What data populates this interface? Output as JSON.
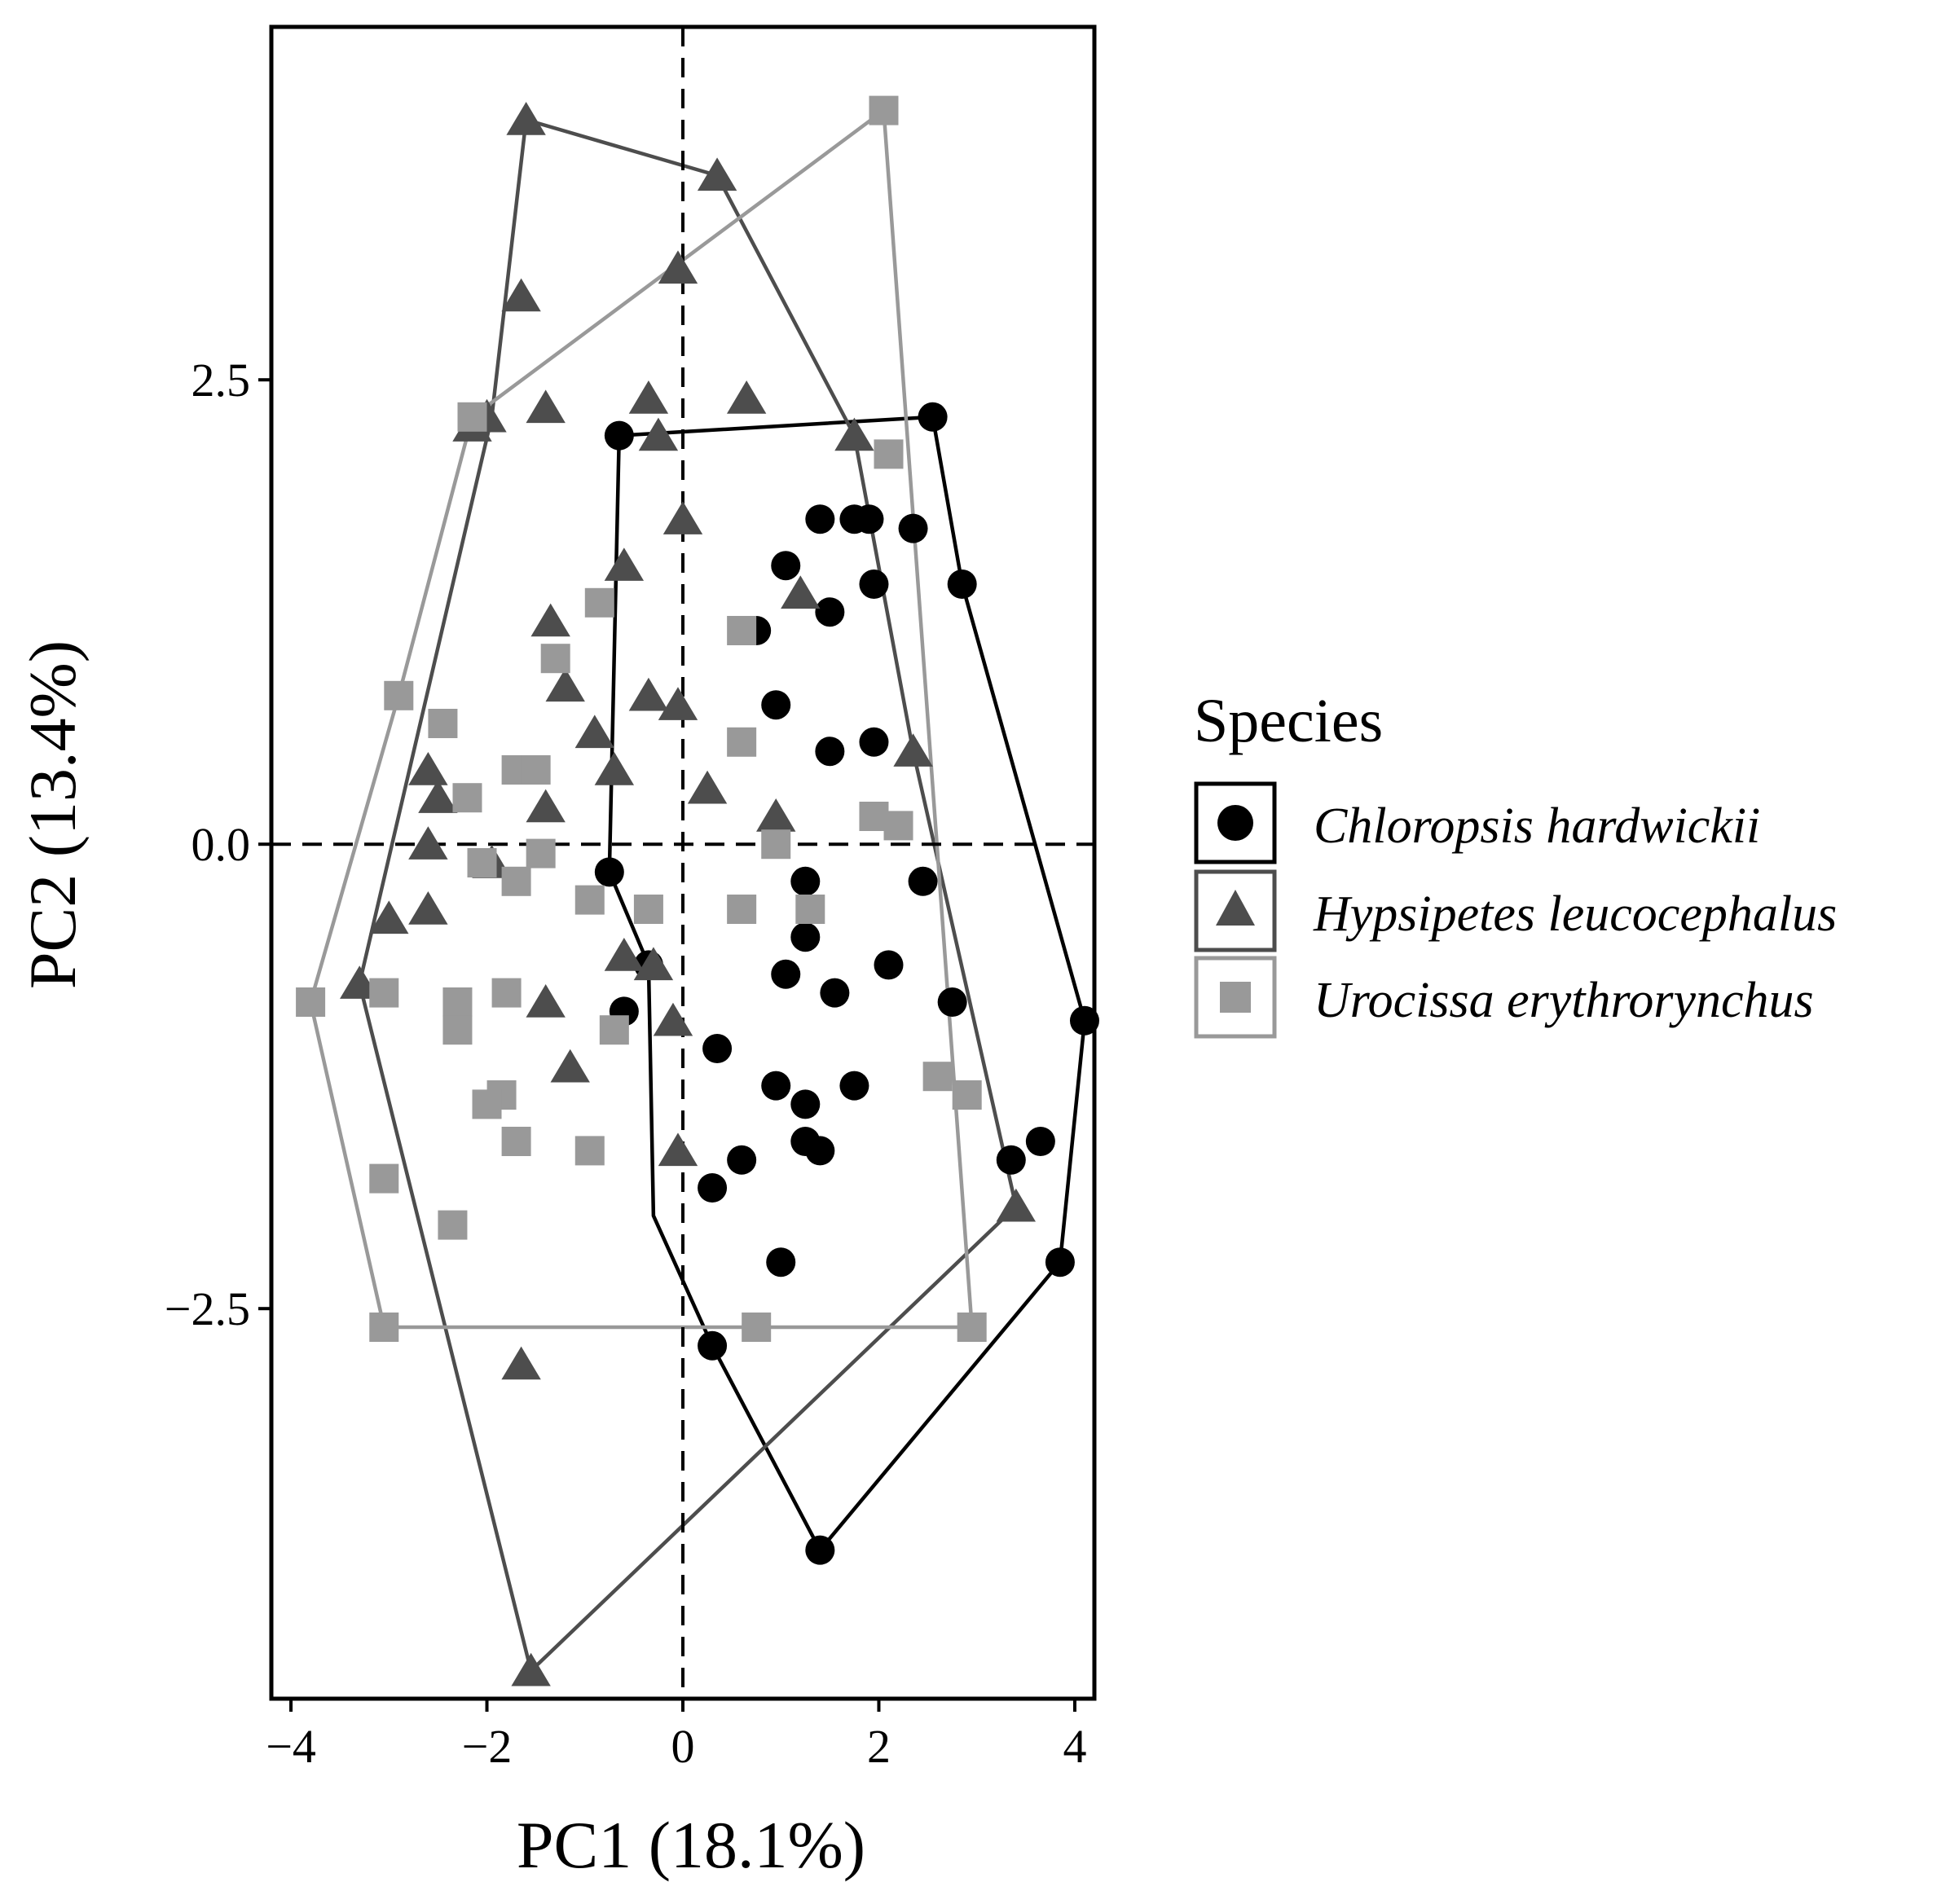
{
  "chart_data": {
    "type": "scatter",
    "xlabel": "PC1 (18.1%)",
    "ylabel": "PC2 (13.4%)",
    "xlim": [
      -4.2,
      4.2
    ],
    "ylim": [
      -4.6,
      4.4
    ],
    "x_ticks": [
      -4,
      -2,
      0,
      2,
      4
    ],
    "x_tick_labels": [
      "−4",
      "−2",
      "0",
      "2",
      "4"
    ],
    "y_ticks": [
      -2.5,
      0.0,
      2.5
    ],
    "y_tick_labels": [
      "−2.5",
      "0.0",
      "2.5"
    ],
    "reference_lines": {
      "x": 0,
      "y": 0,
      "style": "dashed"
    },
    "grid": false,
    "legend": {
      "title": "Species",
      "position": "right"
    },
    "series": [
      {
        "name": "Chloropsis hardwickii",
        "marker": "circle",
        "color": "#000000",
        "hull": [
          [
            -0.65,
            2.2
          ],
          [
            2.55,
            2.3
          ],
          [
            2.85,
            1.4
          ],
          [
            4.1,
            -0.95
          ],
          [
            3.85,
            -2.25
          ],
          [
            1.4,
            -3.8
          ],
          [
            0.3,
            -2.7
          ],
          [
            -0.3,
            -2.0
          ],
          [
            -0.35,
            -0.65
          ],
          [
            -0.75,
            -0.15
          ]
        ],
        "points": [
          [
            -0.65,
            2.2
          ],
          [
            2.55,
            2.3
          ],
          [
            1.4,
            1.75
          ],
          [
            1.75,
            1.75
          ],
          [
            1.9,
            1.75
          ],
          [
            2.35,
            1.7
          ],
          [
            1.05,
            1.5
          ],
          [
            1.95,
            1.4
          ],
          [
            2.85,
            1.4
          ],
          [
            1.5,
            1.25
          ],
          [
            0.75,
            1.15
          ],
          [
            0.95,
            0.75
          ],
          [
            1.5,
            0.5
          ],
          [
            1.95,
            0.55
          ],
          [
            -0.75,
            -0.15
          ],
          [
            1.25,
            -0.2
          ],
          [
            2.45,
            -0.2
          ],
          [
            1.25,
            -0.5
          ],
          [
            -0.35,
            -0.65
          ],
          [
            1.05,
            -0.7
          ],
          [
            2.1,
            -0.65
          ],
          [
            -0.6,
            -0.9
          ],
          [
            1.55,
            -0.8
          ],
          [
            2.75,
            -0.85
          ],
          [
            4.1,
            -0.95
          ],
          [
            0.35,
            -1.1
          ],
          [
            0.95,
            -1.3
          ],
          [
            1.75,
            -1.3
          ],
          [
            1.25,
            -1.4
          ],
          [
            3.65,
            -1.6
          ],
          [
            1.25,
            -1.6
          ],
          [
            1.4,
            -1.65
          ],
          [
            0.6,
            -1.7
          ],
          [
            3.35,
            -1.7
          ],
          [
            0.3,
            -1.85
          ],
          [
            1.0,
            -2.25
          ],
          [
            3.85,
            -2.25
          ],
          [
            0.3,
            -2.7
          ],
          [
            1.4,
            -3.8
          ]
        ]
      },
      {
        "name": "Hypsipetes leucocephalus",
        "marker": "triangle",
        "color": "#4d4d4d",
        "hull": [
          [
            -1.6,
            3.9
          ],
          [
            0.35,
            3.6
          ],
          [
            1.75,
            2.2
          ],
          [
            2.35,
            0.5
          ],
          [
            3.4,
            -1.95
          ],
          [
            -1.55,
            -4.45
          ],
          [
            -3.3,
            -0.75
          ],
          [
            -1.95,
            2.3
          ]
        ],
        "points": [
          [
            -1.6,
            3.9
          ],
          [
            0.35,
            3.6
          ],
          [
            -0.05,
            3.1
          ],
          [
            -1.65,
            2.95
          ],
          [
            -0.35,
            2.4
          ],
          [
            0.65,
            2.4
          ],
          [
            -1.4,
            2.35
          ],
          [
            -2.0,
            2.3
          ],
          [
            -2.15,
            2.25
          ],
          [
            -0.25,
            2.2
          ],
          [
            1.75,
            2.2
          ],
          [
            0.0,
            1.75
          ],
          [
            -0.6,
            1.5
          ],
          [
            1.2,
            1.35
          ],
          [
            -1.35,
            1.2
          ],
          [
            -1.2,
            0.85
          ],
          [
            -0.35,
            0.8
          ],
          [
            -0.05,
            0.75
          ],
          [
            -0.9,
            0.6
          ],
          [
            2.35,
            0.5
          ],
          [
            -2.6,
            0.4
          ],
          [
            -0.7,
            0.4
          ],
          [
            -2.5,
            0.25
          ],
          [
            0.25,
            0.3
          ],
          [
            -1.4,
            0.2
          ],
          [
            0.95,
            0.15
          ],
          [
            -2.6,
            0.0
          ],
          [
            -1.95,
            -0.1
          ],
          [
            -3.0,
            -0.4
          ],
          [
            -2.6,
            -0.35
          ],
          [
            -3.3,
            -0.75
          ],
          [
            -0.6,
            -0.6
          ],
          [
            -0.3,
            -0.65
          ],
          [
            -1.4,
            -0.85
          ],
          [
            -0.1,
            -0.95
          ],
          [
            -1.15,
            -1.2
          ],
          [
            -0.05,
            -1.65
          ],
          [
            3.4,
            -1.95
          ],
          [
            -1.65,
            -2.8
          ],
          [
            -1.55,
            -4.45
          ]
        ]
      },
      {
        "name": "Urocissa erythrorynchus",
        "marker": "square",
        "color": "#999999",
        "hull": [
          [
            2.05,
            3.95
          ],
          [
            2.95,
            -2.6
          ],
          [
            0.75,
            -2.6
          ],
          [
            -3.05,
            -2.6
          ],
          [
            -3.8,
            -0.85
          ],
          [
            -2.9,
            0.8
          ],
          [
            -2.15,
            2.3
          ]
        ],
        "points": [
          [
            2.05,
            3.95
          ],
          [
            -2.15,
            2.3
          ],
          [
            2.1,
            2.1
          ],
          [
            -0.85,
            1.3
          ],
          [
            0.6,
            1.15
          ],
          [
            -1.3,
            1.0
          ],
          [
            -2.9,
            0.8
          ],
          [
            -2.45,
            0.65
          ],
          [
            0.6,
            0.55
          ],
          [
            -1.7,
            0.4
          ],
          [
            -1.5,
            0.4
          ],
          [
            -2.2,
            0.25
          ],
          [
            1.95,
            0.15
          ],
          [
            2.2,
            0.1
          ],
          [
            0.95,
            0.0
          ],
          [
            -1.45,
            -0.05
          ],
          [
            -2.05,
            -0.1
          ],
          [
            -1.7,
            -0.2
          ],
          [
            -0.95,
            -0.3
          ],
          [
            -0.35,
            -0.35
          ],
          [
            0.6,
            -0.35
          ],
          [
            1.3,
            -0.35
          ],
          [
            -3.8,
            -0.85
          ],
          [
            -3.05,
            -0.8
          ],
          [
            -1.8,
            -0.8
          ],
          [
            -2.3,
            -0.85
          ],
          [
            -2.3,
            -1.0
          ],
          [
            -0.7,
            -1.0
          ],
          [
            2.6,
            -1.25
          ],
          [
            2.9,
            -1.35
          ],
          [
            -1.85,
            -1.35
          ],
          [
            -2.0,
            -1.4
          ],
          [
            -1.7,
            -1.6
          ],
          [
            -0.95,
            -1.65
          ],
          [
            -3.05,
            -1.8
          ],
          [
            -2.35,
            -2.05
          ],
          [
            -3.05,
            -2.6
          ],
          [
            0.75,
            -2.6
          ],
          [
            2.95,
            -2.6
          ]
        ]
      }
    ]
  },
  "legend_labels": [
    "Chloropsis hardwickii",
    "Hypsipetes leucocephalus",
    "Urocissa erythrorynchus"
  ]
}
